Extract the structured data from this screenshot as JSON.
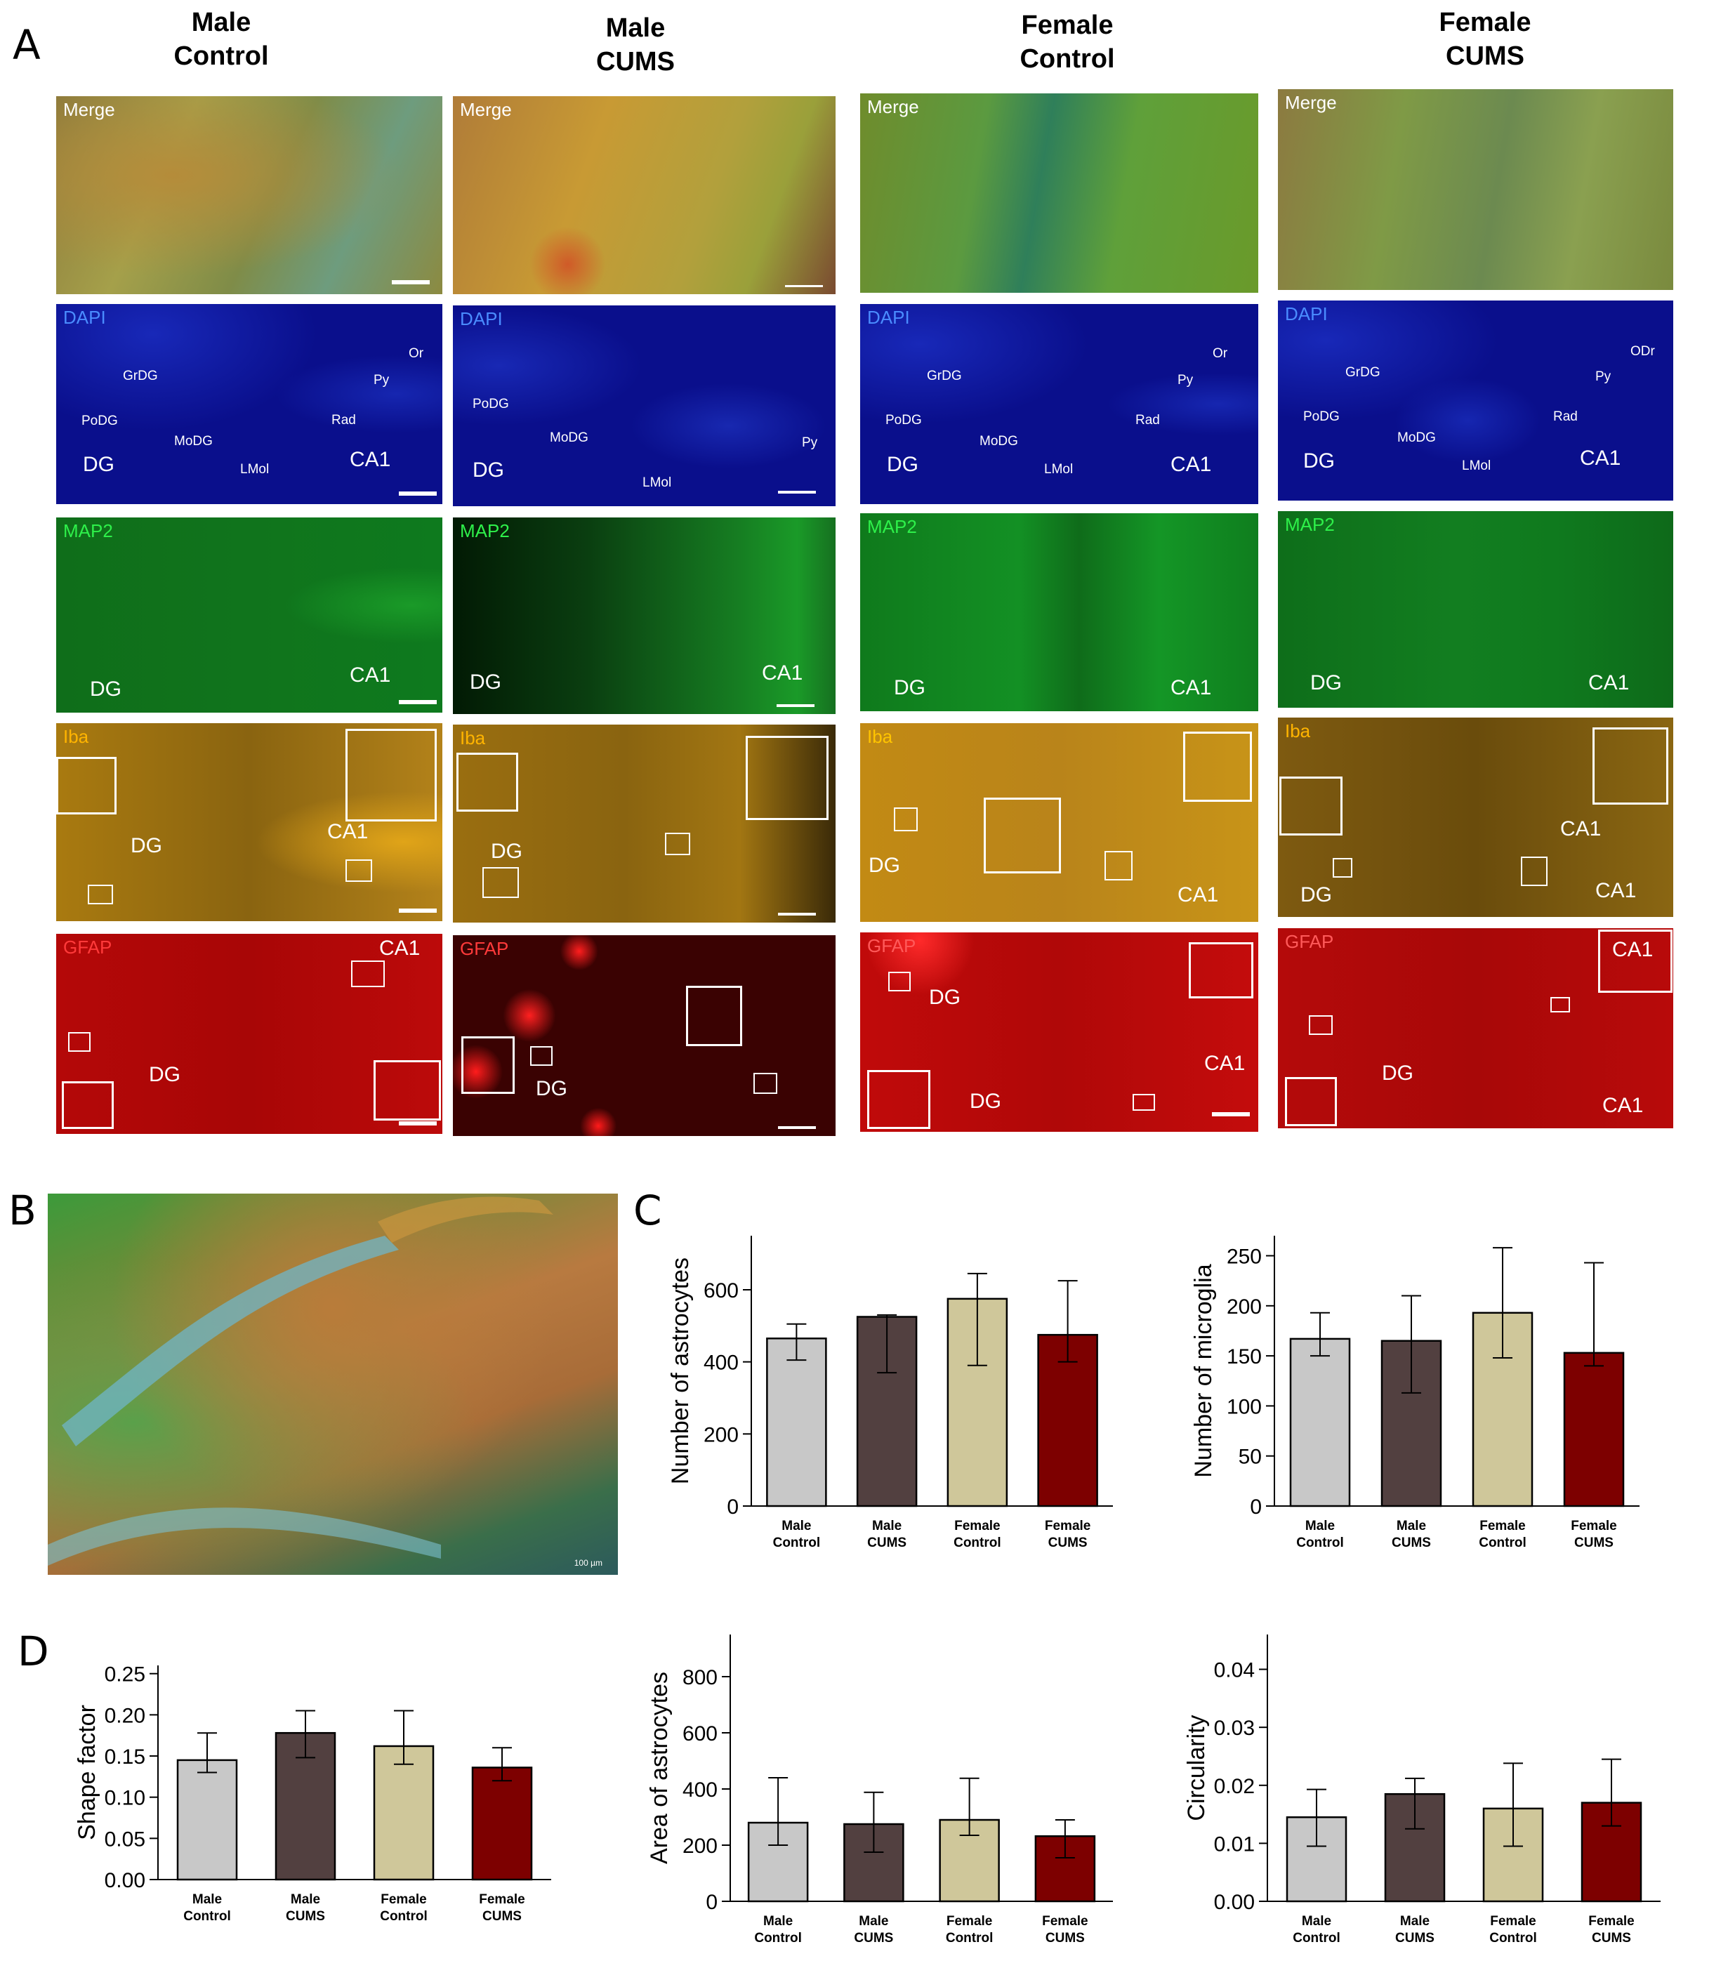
{
  "panels": {
    "A": "A",
    "B": "B",
    "C": "C",
    "D": "D"
  },
  "columns": [
    {
      "line1": "Male",
      "line2": "Control"
    },
    {
      "line1": "Male",
      "line2": "CUMS"
    },
    {
      "line1": "Female",
      "line2": "Control"
    },
    {
      "line1": "Female",
      "line2": "CUMS"
    }
  ],
  "stains": [
    "Merge",
    "DAPI",
    "MAP2",
    "Iba",
    "GFAP"
  ],
  "regions": {
    "DG": "DG",
    "CA1": "CA1",
    "GrDG": "GrDG",
    "PoDG": "PoDG",
    "MoDG": "MoDG",
    "LMol": "LMol",
    "Rad": "Rad",
    "Py": "Py",
    "Or": "Or",
    "ODr": "ODr",
    "scale": "100 µm"
  },
  "colors": {
    "male_control": "#c8c8c8",
    "male_cums": "#524040",
    "female_control": "#cfc79a",
    "female_cums": "#7d0000",
    "dapi": "#0a0f8c",
    "map2": "#0e8a1a",
    "iba": "#d79a12",
    "gfap": "#c40a0a"
  },
  "chart_data": [
    {
      "type": "bar",
      "panel": "C",
      "categories": [
        "Male Control",
        "Male CUMS",
        "Female Control",
        "Female CUMS"
      ],
      "values": [
        465,
        525,
        575,
        475
      ],
      "err_low": [
        405,
        370,
        390,
        400
      ],
      "err_high": [
        505,
        530,
        645,
        625
      ],
      "ylabel": "Number of  astrocytes",
      "ylim": [
        0,
        750
      ],
      "yticks": [
        0,
        200,
        400,
        600
      ]
    },
    {
      "type": "bar",
      "panel": "C",
      "categories": [
        "Male Control",
        "Male CUMS",
        "Female Control",
        "Female CUMS"
      ],
      "values": [
        167,
        165,
        193,
        153
      ],
      "err_low": [
        150,
        113,
        148,
        140
      ],
      "err_high": [
        193,
        210,
        258,
        243
      ],
      "ylabel": "Number of  microglia",
      "ylim": [
        0,
        270
      ],
      "yticks": [
        0,
        50,
        100,
        150,
        200,
        250
      ]
    },
    {
      "type": "bar",
      "panel": "D",
      "categories": [
        "Male Control",
        "Male CUMS",
        "Female Control",
        "Female CUMS"
      ],
      "values": [
        0.145,
        0.178,
        0.162,
        0.136
      ],
      "err_low": [
        0.13,
        0.148,
        0.14,
        0.12
      ],
      "err_high": [
        0.178,
        0.205,
        0.205,
        0.16
      ],
      "ylabel": "Shape factor",
      "ylim": [
        0,
        0.26
      ],
      "yticks": [
        0.0,
        0.05,
        0.1,
        0.15,
        0.2,
        0.25
      ],
      "decimals": 2
    },
    {
      "type": "bar",
      "panel": "D",
      "categories": [
        "Male Control",
        "Male CUMS",
        "Female Control",
        "Female CUMS"
      ],
      "values": [
        280,
        275,
        290,
        232
      ],
      "err_low": [
        200,
        175,
        235,
        155
      ],
      "err_high": [
        440,
        388,
        438,
        290
      ],
      "ylabel": "Area of astrocytes",
      "ylim": [
        0,
        950
      ],
      "yticks": [
        0,
        200,
        400,
        600,
        800
      ]
    },
    {
      "type": "bar",
      "panel": "D",
      "categories": [
        "Male Control",
        "Male CUMS",
        "Female Control",
        "Female CUMS"
      ],
      "values": [
        0.0145,
        0.0185,
        0.016,
        0.017
      ],
      "err_low": [
        0.0095,
        0.0125,
        0.0095,
        0.013
      ],
      "err_high": [
        0.0193,
        0.0212,
        0.0238,
        0.0245
      ],
      "ylabel": "Circularity",
      "ylim": [
        0,
        0.046
      ],
      "yticks": [
        0.0,
        0.01,
        0.02,
        0.03,
        0.04
      ],
      "decimals": 2
    }
  ]
}
